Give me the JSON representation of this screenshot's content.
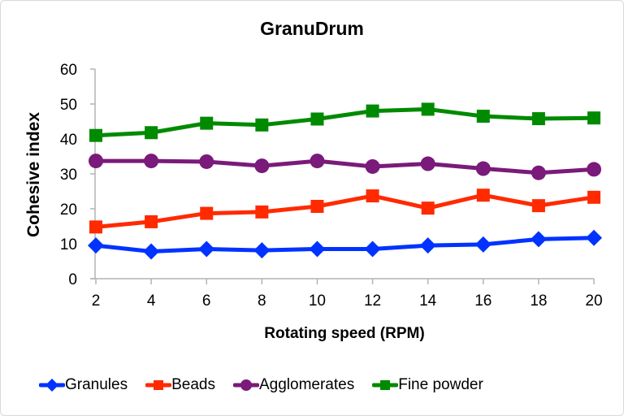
{
  "chart_data": {
    "type": "line",
    "title": "GranuDrum",
    "xlabel": "Rotating speed (RPM)",
    "ylabel": "Cohesive index",
    "x": [
      2,
      4,
      6,
      8,
      10,
      12,
      14,
      16,
      18,
      20
    ],
    "ylim": [
      0,
      60
    ],
    "yticks": [
      0,
      10,
      20,
      30,
      40,
      50,
      60
    ],
    "grid": false,
    "legend_position": "bottom",
    "series": [
      {
        "name": "Granules",
        "color": "#0033ff",
        "marker": "diamond",
        "values": [
          9.5,
          7.8,
          8.5,
          8.1,
          8.5,
          8.5,
          9.5,
          9.8,
          11.3,
          11.7
        ]
      },
      {
        "name": "Beads",
        "color": "#ff2a00",
        "marker": "square",
        "values": [
          14.8,
          16.3,
          18.7,
          19.1,
          20.7,
          23.7,
          20.2,
          23.9,
          20.9,
          23.3
        ]
      },
      {
        "name": "Agglomerates",
        "color": "#7a1a7a",
        "marker": "circle",
        "values": [
          33.7,
          33.7,
          33.5,
          32.3,
          33.7,
          32.1,
          32.9,
          31.5,
          30.3,
          31.3
        ]
      },
      {
        "name": "Fine powder",
        "color": "#008a00",
        "marker": "square",
        "values": [
          41.0,
          41.8,
          44.5,
          44.0,
          45.7,
          48.0,
          48.5,
          46.5,
          45.8,
          46.0
        ]
      }
    ]
  }
}
